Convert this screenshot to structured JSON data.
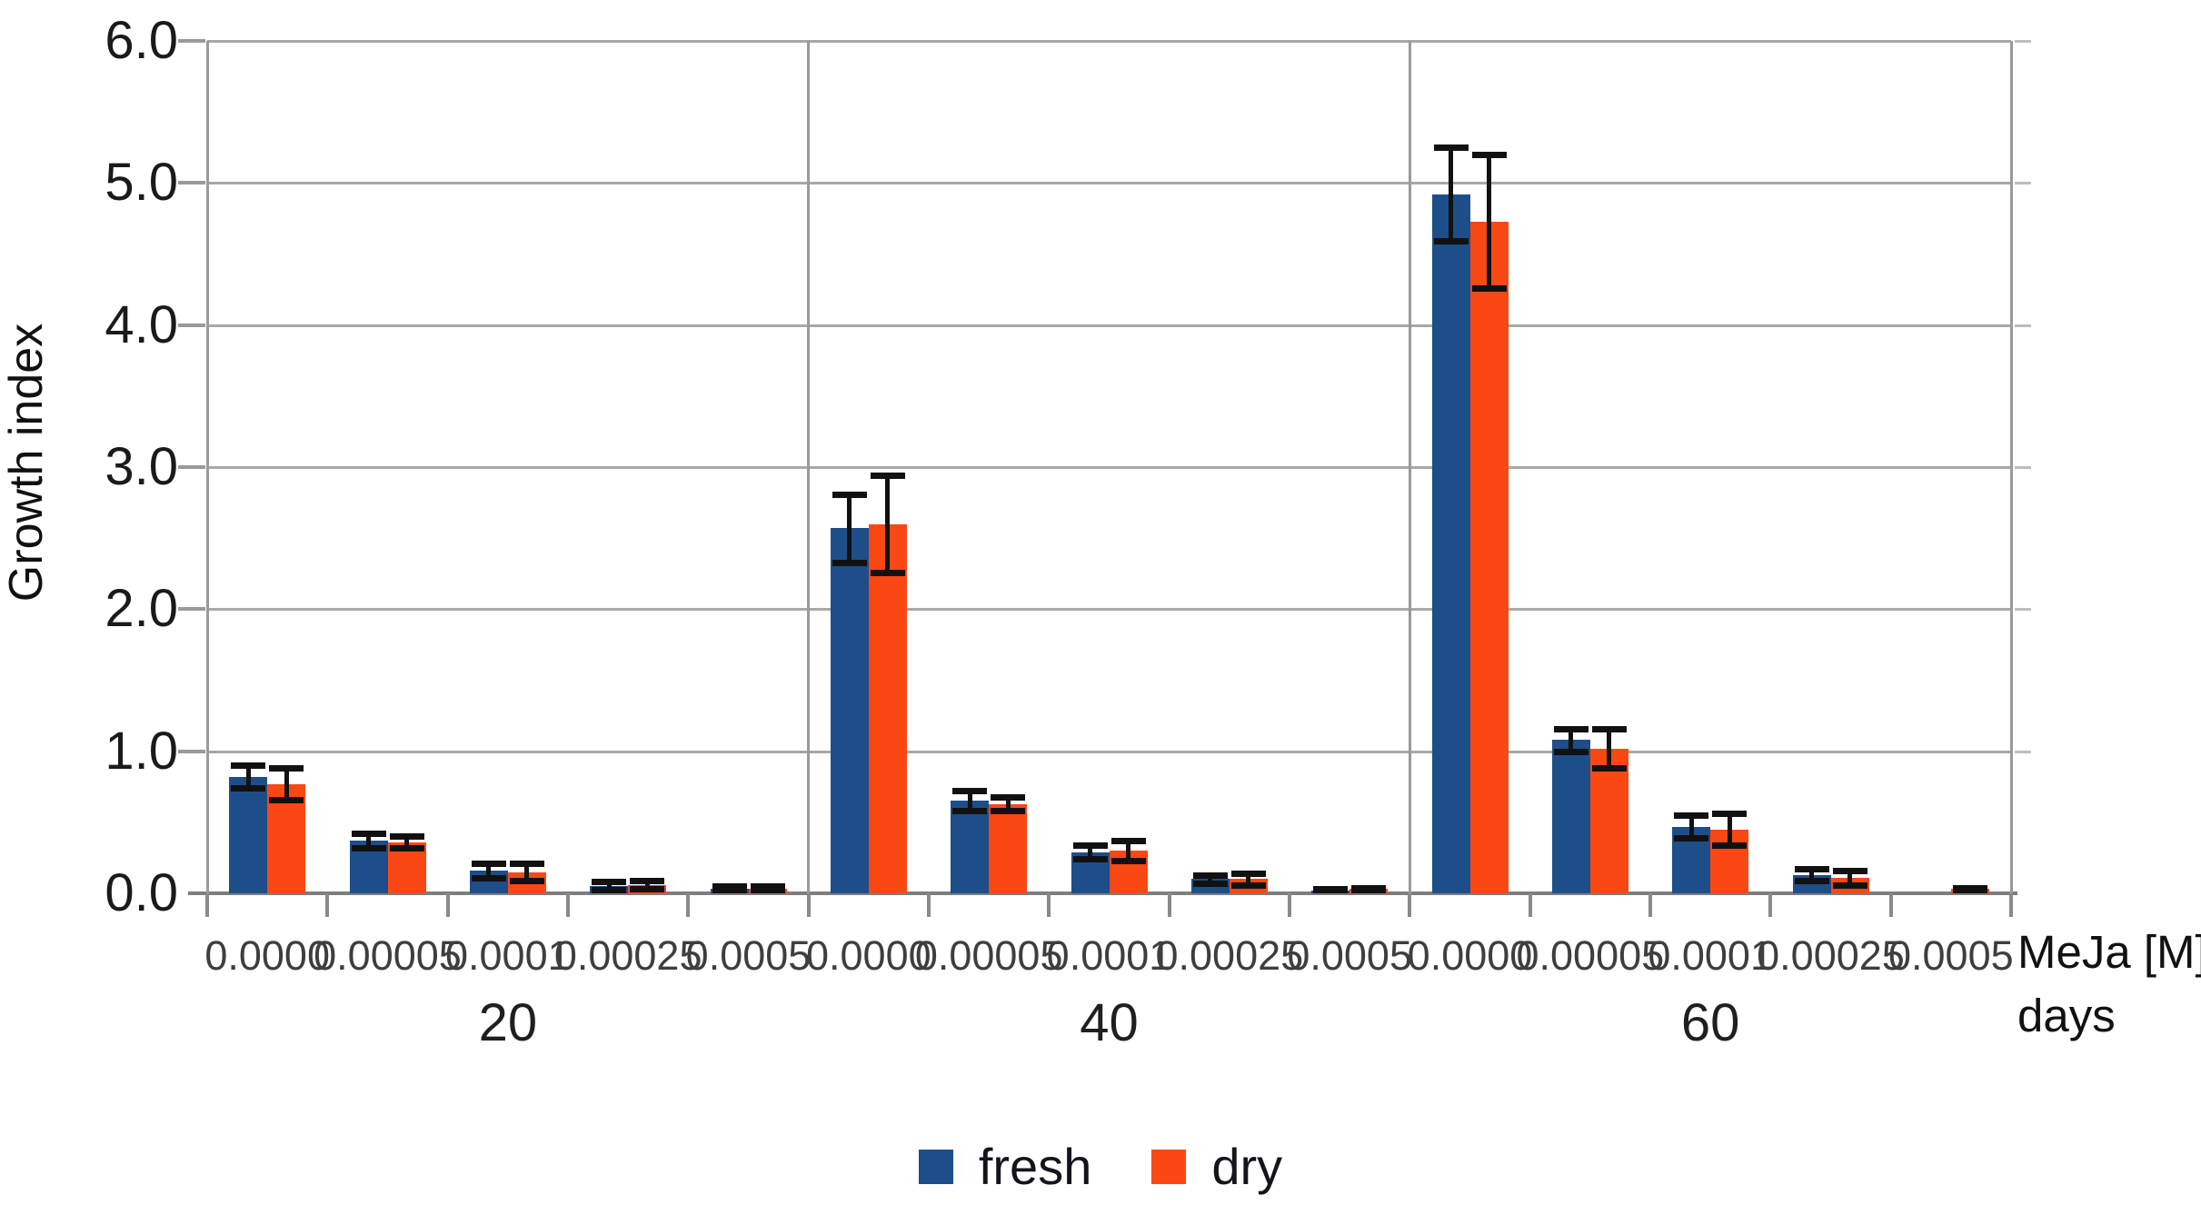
{
  "chart_data": {
    "type": "bar",
    "title": "",
    "ylabel": "Growth index",
    "xlabel_unit": "MeJa [M]",
    "xlabel_days": "days",
    "ylim": [
      0,
      6
    ],
    "ytick_step": 1.0,
    "ytick_labels": [
      "0.0",
      "1.0",
      "2.0",
      "3.0",
      "4.0",
      "5.0",
      "6.0"
    ],
    "grid": true,
    "legend_position": "bottom",
    "legend": [
      "fresh",
      "dry"
    ],
    "series_colors": {
      "fresh": "#1d4e89",
      "dry": "#f94814"
    },
    "error_bar_color": "#111111",
    "categories": [
      "0.0000",
      "0.00005",
      "0.0001",
      "0.00025",
      "0.0005"
    ],
    "groups": [
      {
        "label": "20",
        "series": [
          {
            "name": "fresh",
            "values": [
              0.82,
              0.37,
              0.16,
              0.05,
              0.03
            ],
            "errors": [
              0.08,
              0.05,
              0.05,
              0.03,
              0.02
            ]
          },
          {
            "name": "dry",
            "values": [
              0.77,
              0.36,
              0.15,
              0.06,
              0.03
            ],
            "errors": [
              0.11,
              0.04,
              0.06,
              0.03,
              0.02
            ]
          }
        ]
      },
      {
        "label": "40",
        "series": [
          {
            "name": "fresh",
            "values": [
              2.57,
              0.65,
              0.29,
              0.1,
              0.02
            ],
            "errors": [
              0.24,
              0.07,
              0.05,
              0.03,
              0.01
            ]
          },
          {
            "name": "dry",
            "values": [
              2.6,
              0.63,
              0.3,
              0.1,
              0.03
            ],
            "errors": [
              0.34,
              0.05,
              0.07,
              0.04,
              0.01
            ]
          }
        ]
      },
      {
        "label": "60",
        "series": [
          {
            "name": "fresh",
            "values": [
              4.92,
              1.08,
              0.47,
              0.13,
              0.0
            ],
            "errors": [
              0.33,
              0.08,
              0.08,
              0.04,
              0.0
            ]
          },
          {
            "name": "dry",
            "values": [
              4.73,
              1.02,
              0.45,
              0.11,
              0.03
            ],
            "errors": [
              0.47,
              0.14,
              0.11,
              0.05,
              0.01
            ]
          }
        ]
      }
    ]
  }
}
